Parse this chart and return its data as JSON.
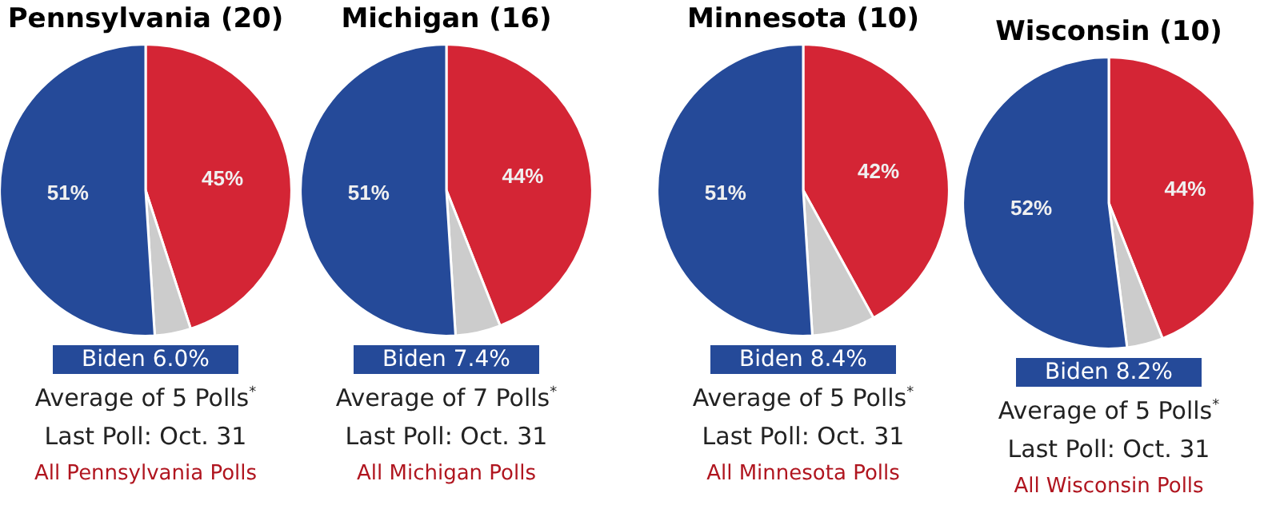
{
  "chart_data": [
    {
      "type": "pie",
      "title": "Pennsylvania (20)",
      "categories": [
        null,
        null,
        null
      ],
      "values": [
        45,
        4,
        51
      ],
      "colors": [
        "#d42535",
        "#cccccc",
        "#254a99"
      ],
      "value_labels": [
        "45%",
        null,
        "51%"
      ],
      "annotations": [
        "Biden 6.0%",
        "Average of 5 Polls$^{*}$",
        "Last Poll: Oct. 31",
        "All Pennsylvania Polls"
      ]
    },
    {
      "type": "pie",
      "title": "Michigan (16)",
      "categories": [
        null,
        null,
        null
      ],
      "values": [
        44,
        5,
        51
      ],
      "colors": [
        "#d42535",
        "#cccccc",
        "#254a99"
      ],
      "value_labels": [
        "44%",
        null,
        "51%"
      ],
      "annotations": [
        "Biden 7.4%",
        "Average of 7 Polls$^{*}$",
        "Last Poll: Oct. 31",
        "All Michigan Polls"
      ]
    },
    {
      "type": "pie",
      "title": "Minnesota (10)",
      "categories": [
        null,
        null,
        null
      ],
      "values": [
        42,
        7,
        51
      ],
      "colors": [
        "#d42535",
        "#cccccc",
        "#254a99"
      ],
      "value_labels": [
        "42%",
        null,
        "51%"
      ],
      "annotations": [
        "Biden 8.4%",
        "Average of 5 Polls$^{*}$",
        "Last Poll: Oct. 31",
        "All Minnesota Polls"
      ]
    },
    {
      "type": "pie",
      "title": "Wisconsin (10)",
      "categories": [
        null,
        null,
        null
      ],
      "values": [
        44,
        4,
        52
      ],
      "colors": [
        "#d42535",
        "#cccccc",
        "#254a99"
      ],
      "value_labels": [
        "44%",
        null,
        "52%"
      ],
      "annotations": [
        "Biden 8.2%",
        "Average of 5 Polls$^{*}$",
        "Last Poll: Oct. 31",
        "All Wisconsin Polls"
      ]
    }
  ]
}
